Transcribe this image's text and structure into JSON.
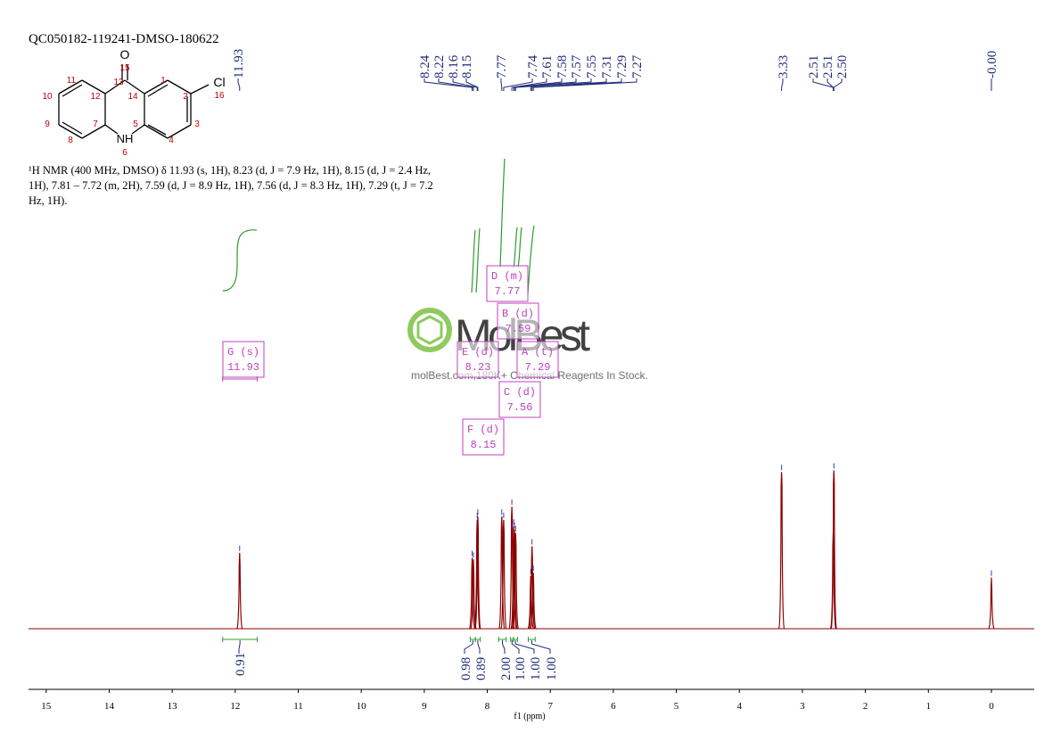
{
  "chart_data": {
    "type": "spectrum",
    "title": "QC050182-119241-DMSO-180622",
    "description": [
      "¹H NMR (400 MHz, DMSO) δ 11.93 (s, 1H), 8.23 (d, J = 7.9 Hz, 1H), 8.15 (d, J = 2.4 Hz,",
      "1H), 7.81 – 7.72 (m, 2H), 7.59 (d, J = 8.9 Hz, 1H), 7.56 (d, J = 8.3 Hz, 1H), 7.29 (t, J = 7.2",
      "Hz, 1H)."
    ],
    "molecule": {
      "atoms": [
        "O",
        "Cl",
        "NH"
      ],
      "numbers": [
        15,
        13,
        11,
        12,
        14,
        1,
        2,
        16,
        10,
        9,
        8,
        7,
        6,
        5,
        4,
        3
      ]
    },
    "watermark": [
      "MolBest",
      "molBest.com,180K+ Chemical Reagents In Stock."
    ],
    "xlabel": "f1 (ppm)",
    "xlim": [
      15.28,
      -0.68
    ],
    "xticks": [
      15,
      14,
      13,
      12,
      11,
      10,
      9,
      8,
      7,
      6,
      5,
      4,
      3,
      2,
      1,
      0
    ],
    "ylim": [
      0,
      100
    ],
    "color": "#8b0000",
    "peak_labels": [
      11.93,
      8.24,
      8.22,
      8.16,
      8.15,
      7.77,
      7.74,
      7.61,
      7.58,
      7.57,
      7.55,
      7.31,
      7.29,
      7.27,
      3.33,
      2.51,
      2.51,
      {
        "value": 2.5,
        "label": "2.50"
      },
      {
        "value": 0,
        "label": "-0.00"
      }
    ],
    "x": [
      11.93,
      8.24,
      8.22,
      8.16,
      8.15,
      7.77,
      7.74,
      7.61,
      7.58,
      7.57,
      7.55,
      7.31,
      7.29,
      7.27,
      3.33,
      2.51,
      2.5,
      0
    ],
    "values": [
      46,
      43,
      42,
      66,
      68,
      68,
      66,
      74,
      62,
      60,
      58,
      32,
      50,
      34,
      95,
      58,
      96,
      31
    ],
    "integrals": [
      {
        "range": [
          12.2,
          11.65
        ],
        "value": 0.91
      },
      {
        "range": [
          8.27,
          8.19
        ],
        "value": 0.98
      },
      {
        "range": [
          8.19,
          8.11
        ],
        "value": 0.89
      },
      {
        "range": [
          7.82,
          7.7
        ],
        "value": 2,
        "label": "2.00"
      },
      {
        "range": [
          7.63,
          7.585
        ],
        "value": 1,
        "label": "1.00"
      },
      {
        "range": [
          7.585,
          7.52
        ],
        "value": 1,
        "label": "1.00"
      },
      {
        "range": [
          7.35,
          7.24
        ],
        "value": 1,
        "label": "1.00"
      }
    ],
    "multiplets": [
      {
        "label": "G (s)",
        "shift": 11.93
      },
      {
        "label": "E (d)",
        "shift": 8.23
      },
      {
        "label": "F (d)",
        "shift": 8.15
      },
      {
        "label": "D (m)",
        "shift": 7.77
      },
      {
        "label": "B (d)",
        "shift": 7.59
      },
      {
        "label": "C (d)",
        "shift": 7.56
      },
      {
        "label": "A (t)",
        "shift": 7.29
      }
    ]
  }
}
